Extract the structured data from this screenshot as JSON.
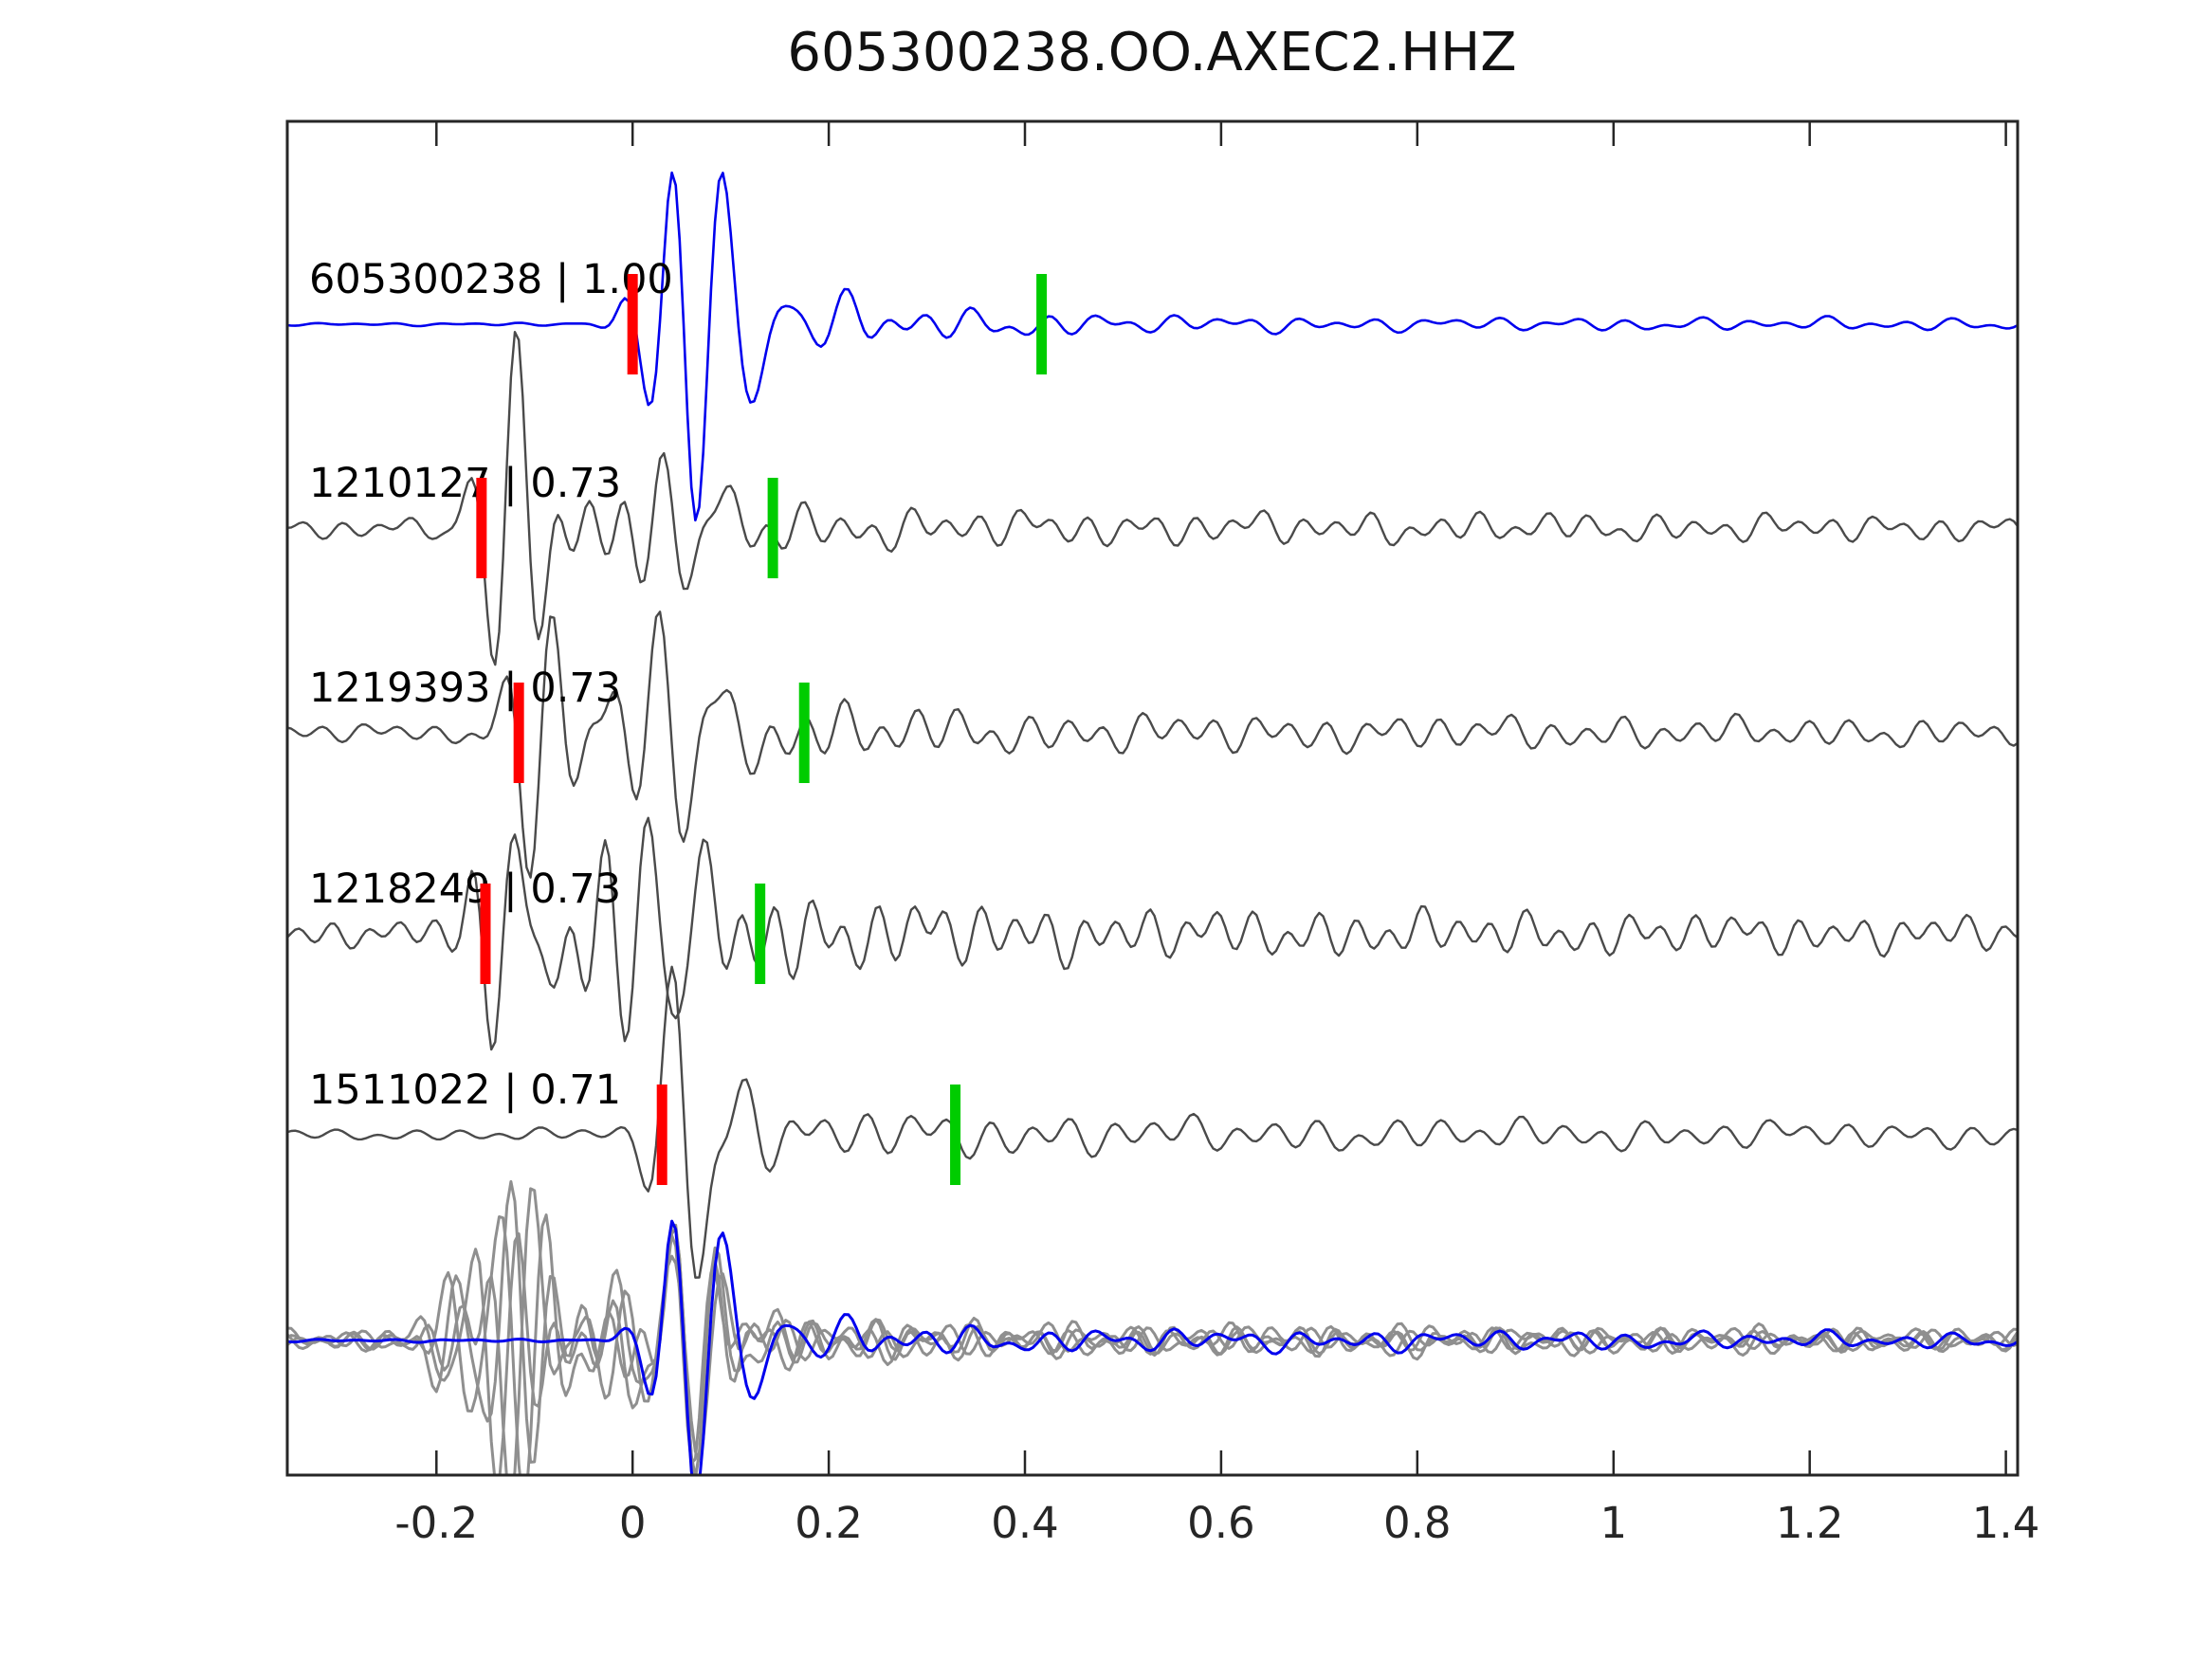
{
  "chart_data": {
    "type": "line",
    "title": "605300238.OO.AXEC2.HHZ",
    "xlabel": "",
    "ylabel": "",
    "xlim": [
      -0.352,
      1.412
    ],
    "x_ticks": [
      -0.2,
      0,
      0.2,
      0.4,
      0.6,
      0.8,
      1,
      1.2,
      1.4
    ],
    "x_tick_labels": [
      "-0.2",
      "0",
      "0.2",
      "0.4",
      "0.6",
      "0.8",
      "1",
      "1.2",
      "1.4"
    ],
    "grid": false,
    "legend": "none",
    "y_axis_ticks": "none",
    "colors": {
      "template_blue": "#0000ee",
      "detection_gray": "#4a4a4a",
      "overlay_gray": "#8f8f8f",
      "pick_red": "#ff0000",
      "pick_green": "#00cc00",
      "axis": "#262626",
      "background": "#ffffff"
    },
    "traces": [
      {
        "id": "605300238",
        "label": "605300238 | 1.00",
        "correlation": 1.0,
        "row": 0,
        "color_role": "template_blue",
        "red_pick_t": 0.0,
        "green_pick_t": 0.417
      },
      {
        "id": "1210127",
        "label": "1210127 | 0.73",
        "correlation": 0.73,
        "row": 1,
        "color_role": "detection_gray",
        "red_pick_t": -0.154,
        "green_pick_t": 0.143
      },
      {
        "id": "1219393",
        "label": "1219393 | 0.73",
        "correlation": 0.73,
        "row": 2,
        "color_role": "detection_gray",
        "red_pick_t": -0.116,
        "green_pick_t": 0.175
      },
      {
        "id": "1218249",
        "label": "1218249 | 0.73",
        "correlation": 0.73,
        "row": 3,
        "color_role": "detection_gray",
        "red_pick_t": -0.15,
        "green_pick_t": 0.13
      },
      {
        "id": "1511022",
        "label": "1511022 | 0.71",
        "correlation": 0.71,
        "row": 4,
        "color_role": "detection_gray",
        "red_pick_t": 0.03,
        "green_pick_t": 0.329
      }
    ],
    "overlay_row": {
      "row": 5,
      "description": "stack of gray detection waveforms overlaid with blue template waveform",
      "gray_trace_count": 4,
      "has_blue_template": true
    }
  }
}
